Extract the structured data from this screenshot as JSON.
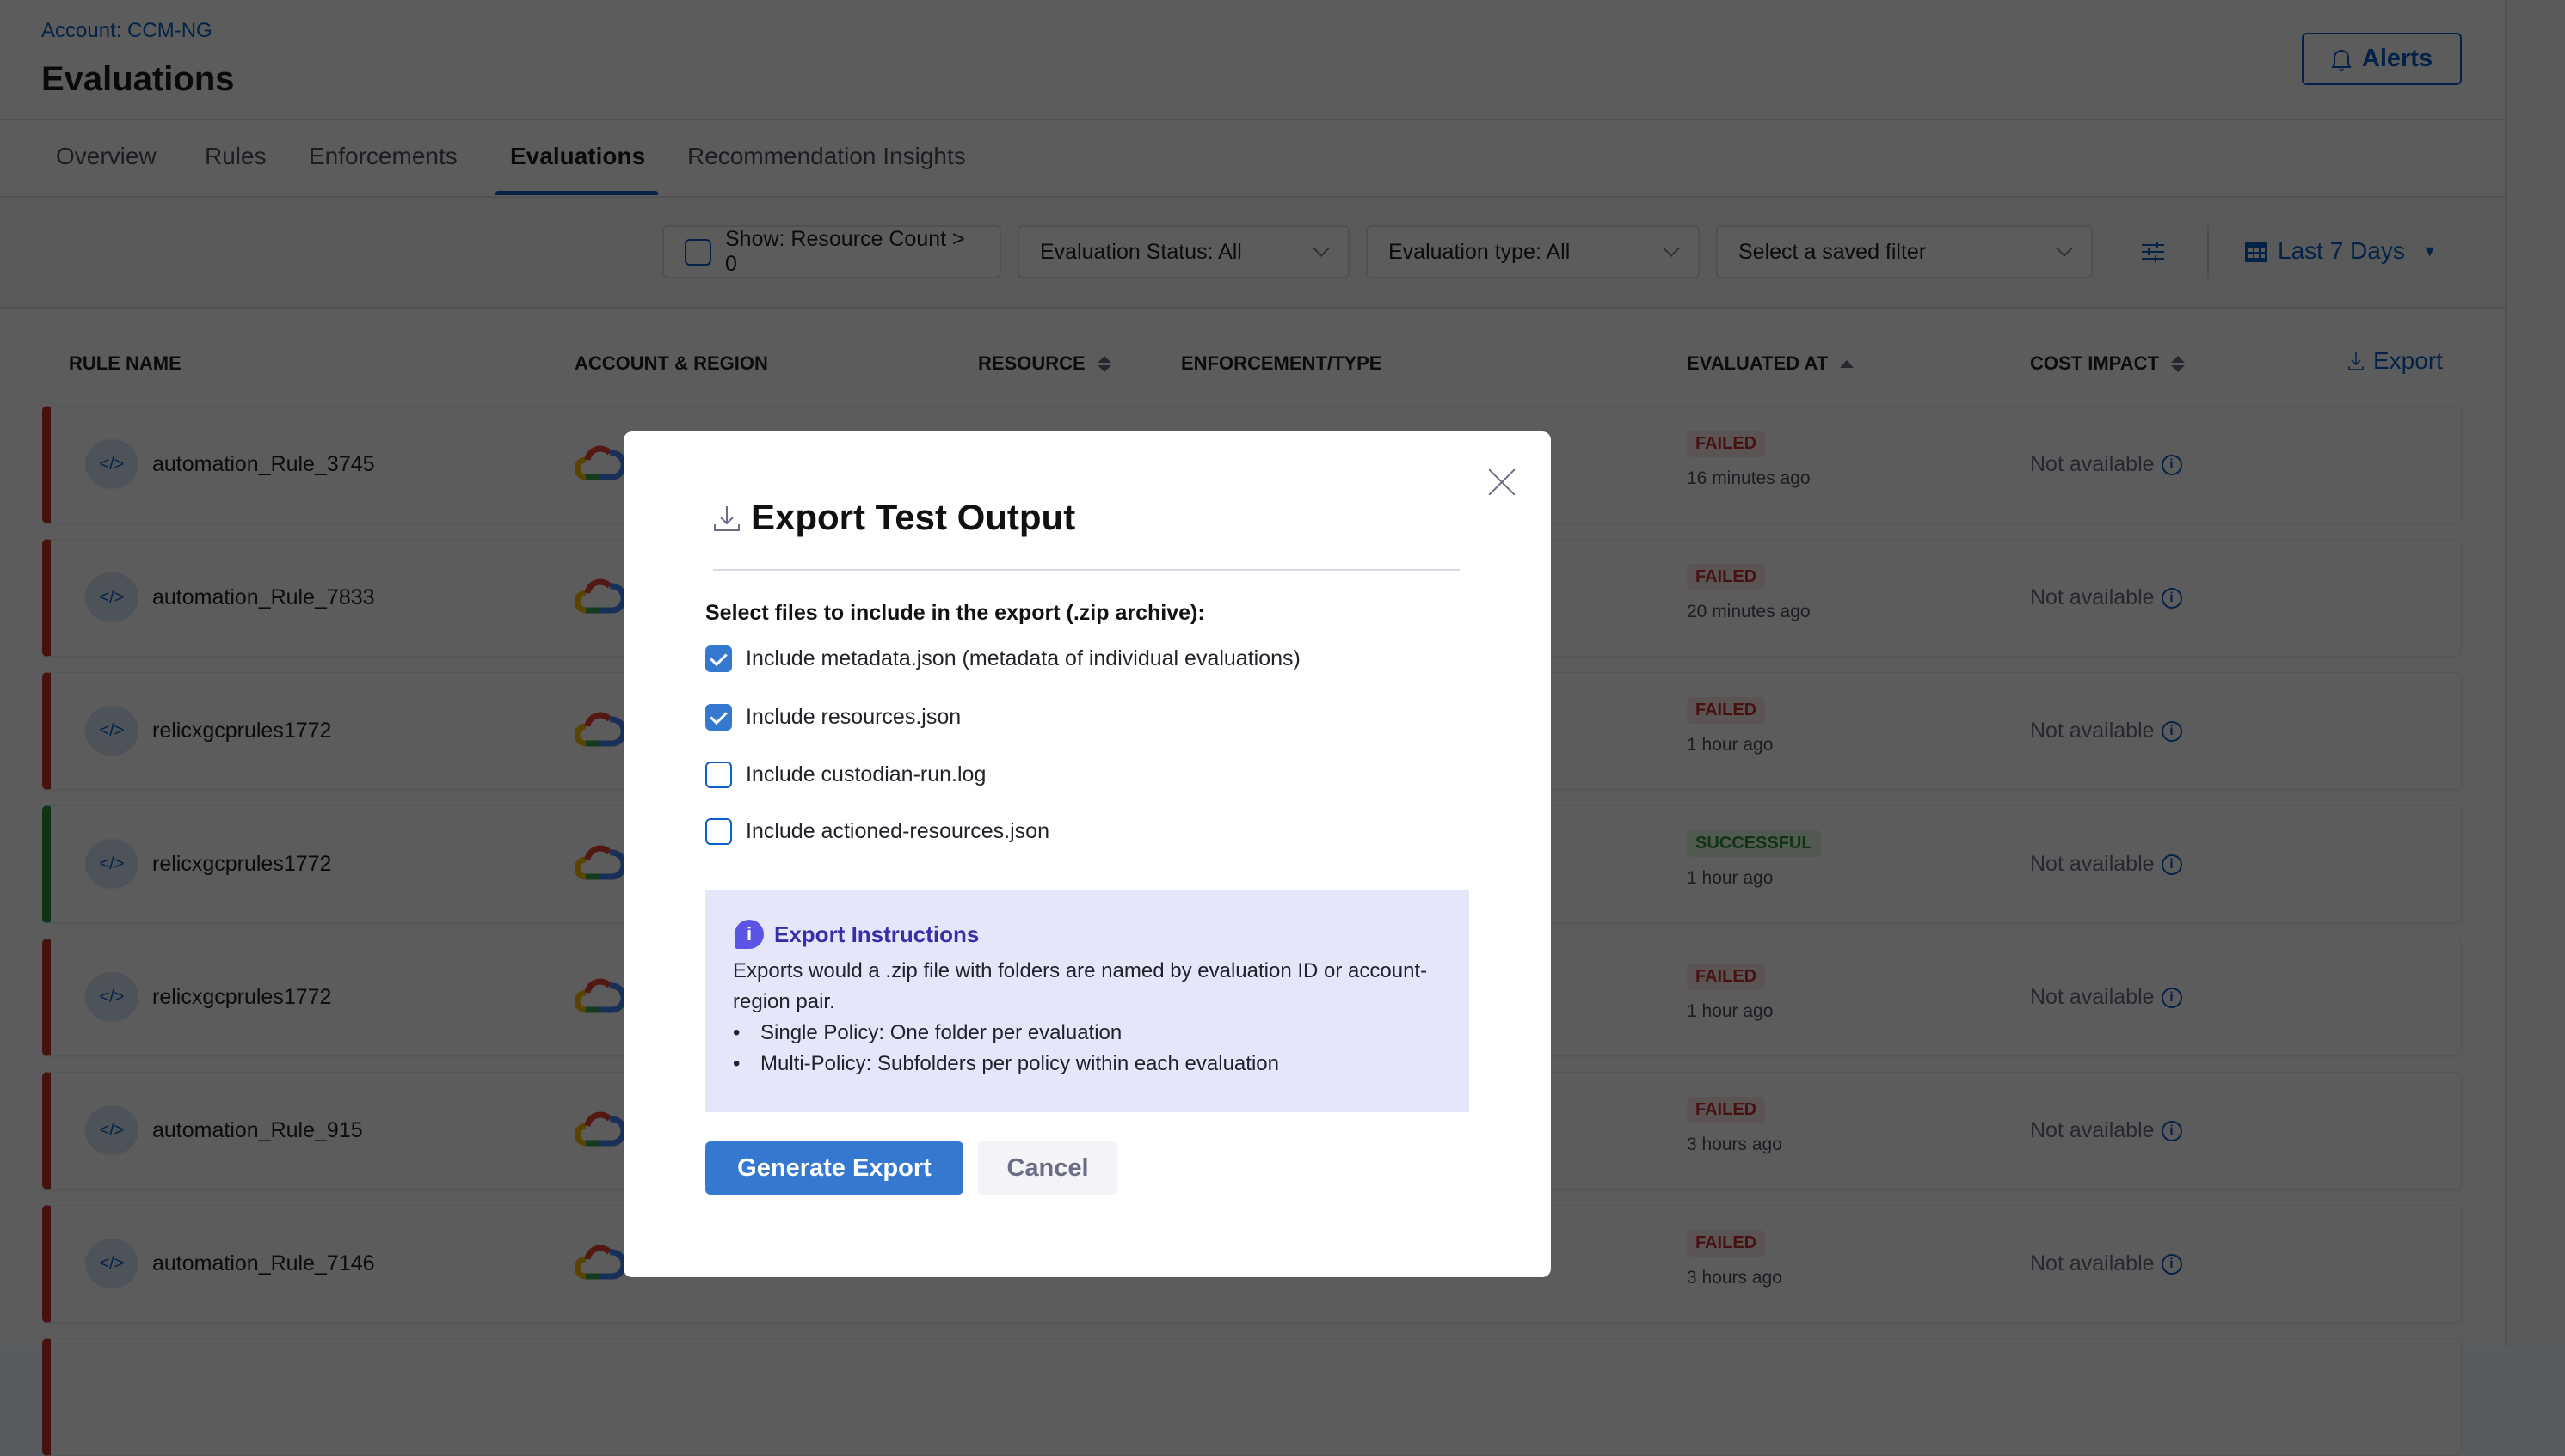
{
  "header": {
    "account": "Account: CCM-NG",
    "title": "Evaluations",
    "alerts_label": "Alerts"
  },
  "tabs": [
    {
      "label": "Overview"
    },
    {
      "label": "Rules"
    },
    {
      "label": "Enforcements"
    },
    {
      "label": "Evaluations",
      "active": true
    },
    {
      "label": "Recommendation Insights"
    }
  ],
  "filters": {
    "resource_count": "Show: Resource Count > 0",
    "evaluation_status": "Evaluation Status: All",
    "evaluation_type": "Evaluation type: All",
    "saved_filter_placeholder": "Select a saved filter",
    "date_range": "Last 7 Days"
  },
  "table": {
    "columns": [
      "RULE NAME",
      "ACCOUNT & REGION",
      "RESOURCE",
      "ENFORCEMENT/TYPE",
      "EVALUATED AT",
      "COST IMPACT"
    ],
    "export_label": "Export",
    "rows": [
      {
        "name": "automation_Rule_3745",
        "status": "FAILED",
        "time": "16 minutes ago",
        "cost": "Not available"
      },
      {
        "name": "automation_Rule_7833",
        "status": "FAILED",
        "time": "20 minutes ago",
        "cost": "Not available"
      },
      {
        "name": "relicxgcprules1772",
        "status": "FAILED",
        "time": "1 hour ago",
        "cost": "Not available"
      },
      {
        "name": "relicxgcprules1772",
        "status": "SUCCESSFUL",
        "time": "1 hour ago",
        "cost": "Not available"
      },
      {
        "name": "relicxgcprules1772",
        "status": "FAILED",
        "time": "1 hour ago",
        "cost": "Not available"
      },
      {
        "name": "automation_Rule_915",
        "status": "FAILED",
        "time": "3 hours ago",
        "cost": "Not available"
      },
      {
        "name": "automation_Rule_7146",
        "status": "FAILED",
        "time": "3 hours ago",
        "cost": "Not available"
      }
    ]
  },
  "modal": {
    "title": "Export Test Output",
    "prompt": "Select files to include in the export (.zip archive):",
    "options": [
      {
        "label": "Include metadata.json (metadata of individual evaluations)",
        "checked": true
      },
      {
        "label": "Include resources.json",
        "checked": true
      },
      {
        "label": "Include custodian-run.log",
        "checked": false
      },
      {
        "label": "Include actioned-resources.json",
        "checked": false
      }
    ],
    "instructions": {
      "heading": "Export Instructions",
      "text": "Exports would a .zip file with folders are named by evaluation ID or account-region pair.",
      "bullets": [
        "Single Policy: One folder per evaluation",
        "Multi-Policy: Subfolders per policy within each evaluation"
      ]
    },
    "generate_label": "Generate Export",
    "cancel_label": "Cancel"
  },
  "colors": {
    "accent": "#0b5fc7",
    "primary_button": "#3478d0",
    "failed": "#c4302b",
    "success": "#2f8f3a",
    "info_bg": "#e6e6fa"
  }
}
